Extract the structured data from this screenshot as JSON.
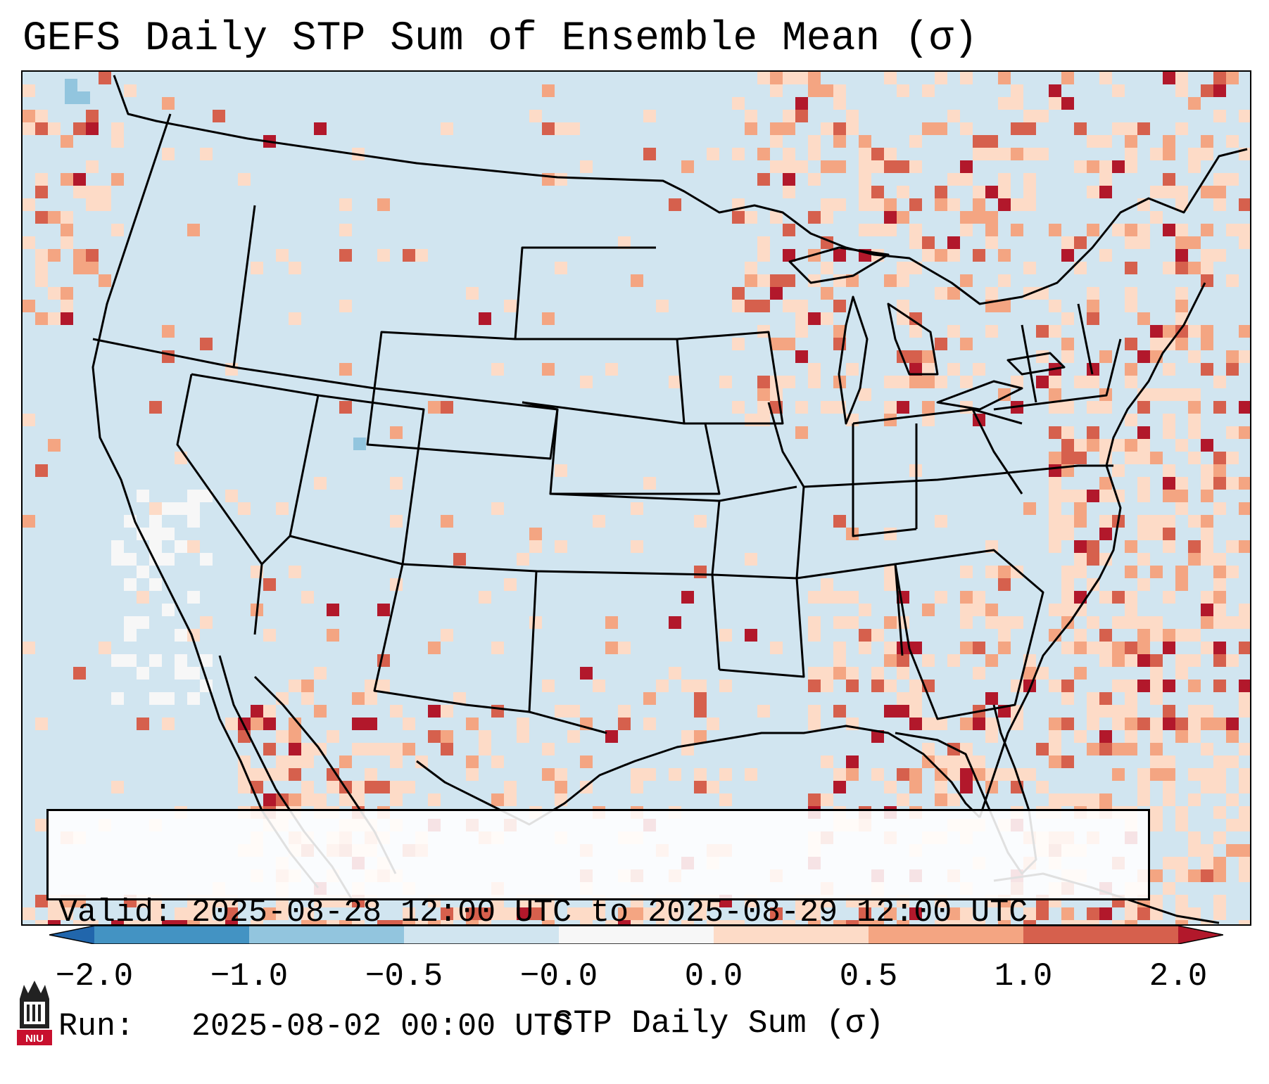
{
  "title": "GEFS Daily STP Sum of Ensemble Mean (σ)",
  "info": {
    "valid_line": "Valid: 2025-08-28 12:00 UTC to 2025-08-29 12:00 UTC",
    "run_line": "Run:   2025-08-02 00:00 UTC"
  },
  "colorbar": {
    "label": "STP Daily Sum (σ)",
    "ticks": [
      "−2.0",
      "−1.0",
      "−0.5",
      "−0.0",
      "0.0",
      "0.5",
      "1.0",
      "2.0"
    ],
    "bins": [
      {
        "color": "#2166ac"
      },
      {
        "color": "#4393c3"
      },
      {
        "color": "#92c5de"
      },
      {
        "color": "#d1e5f0"
      },
      {
        "color": "#f7f7f7"
      },
      {
        "color": "#fddbc7"
      },
      {
        "color": "#f4a582"
      },
      {
        "color": "#d6604d"
      },
      {
        "color": "#b2182b"
      }
    ]
  },
  "map": {
    "background_color": "#d1e5f0",
    "border_color": "#000000"
  },
  "logo": {
    "text": "NIU",
    "color": "#c8102e"
  }
}
